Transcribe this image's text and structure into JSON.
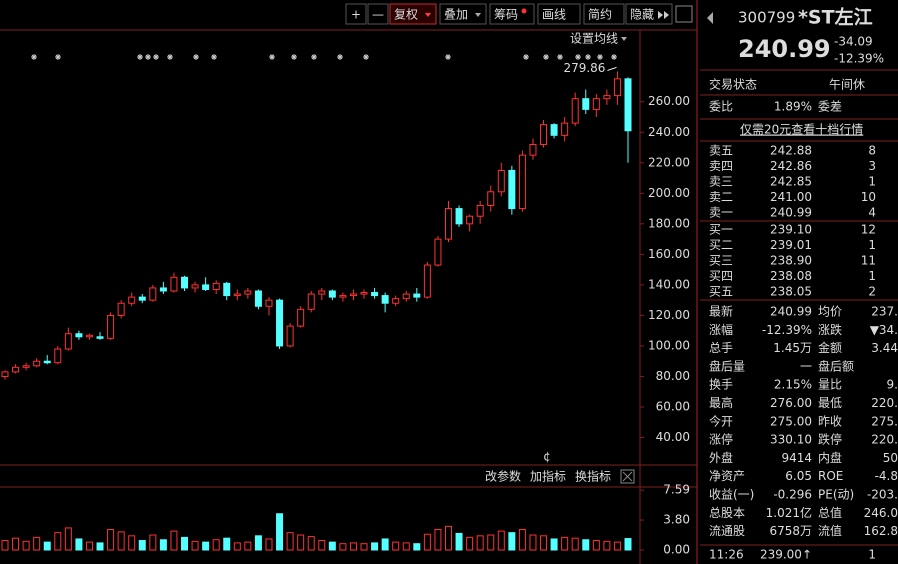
{
  "toolbar": {
    "buttons": [
      "+",
      "—",
      "复权",
      "叠加",
      "筹码",
      "画线",
      "简约",
      "隐藏"
    ]
  },
  "chart_data": {
    "type": "candlestick",
    "ma_setting": "设置均线",
    "high_label": "279.86",
    "signal": "¢",
    "ylim": [
      22,
      307
    ],
    "yticks": [
      {
        "value": 260,
        "label": "260.00"
      },
      {
        "value": 240,
        "label": "240.00"
      },
      {
        "value": 220,
        "label": "220.00"
      },
      {
        "value": 200,
        "label": "200.00"
      },
      {
        "value": 180,
        "label": "180.00"
      },
      {
        "value": 160,
        "label": "160.00"
      },
      {
        "value": 140,
        "label": "140.00"
      },
      {
        "value": 120,
        "label": "120.00"
      },
      {
        "value": 100,
        "label": "100.00"
      },
      {
        "value": 80,
        "label": "80.00"
      },
      {
        "value": 60,
        "label": "60.00"
      },
      {
        "value": 40,
        "label": "40.00"
      }
    ],
    "up_color": "#ff3232",
    "down_color": "#54ffff",
    "candles": [
      [
        80,
        84,
        78,
        83
      ],
      [
        83,
        88,
        82,
        86
      ],
      [
        86,
        89,
        84,
        87
      ],
      [
        87,
        92,
        86,
        90
      ],
      [
        90,
        94,
        88,
        89
      ],
      [
        89,
        100,
        88,
        98
      ],
      [
        98,
        112,
        97,
        108
      ],
      [
        108,
        110,
        104,
        106
      ],
      [
        106,
        108,
        104,
        107
      ],
      [
        106,
        109,
        104,
        105
      ],
      [
        105,
        122,
        104,
        120
      ],
      [
        120,
        130,
        118,
        128
      ],
      [
        128,
        135,
        126,
        132
      ],
      [
        132,
        134,
        128,
        130
      ],
      [
        130,
        140,
        129,
        138
      ],
      [
        138,
        142,
        134,
        136
      ],
      [
        136,
        148,
        135,
        145
      ],
      [
        145,
        146,
        136,
        138
      ],
      [
        138,
        142,
        135,
        140
      ],
      [
        140,
        145,
        136,
        137
      ],
      [
        137,
        143,
        134,
        141
      ],
      [
        141,
        142,
        130,
        133
      ],
      [
        133,
        137,
        130,
        134
      ],
      [
        134,
        138,
        131,
        136
      ],
      [
        136,
        137,
        124,
        126
      ],
      [
        126,
        132,
        120,
        130
      ],
      [
        130,
        131,
        98,
        100
      ],
      [
        100,
        115,
        99,
        113
      ],
      [
        113,
        126,
        112,
        124
      ],
      [
        124,
        136,
        122,
        134
      ],
      [
        134,
        138,
        130,
        136
      ],
      [
        136,
        137,
        130,
        132
      ],
      [
        132,
        135,
        129,
        133
      ],
      [
        133,
        137,
        130,
        134
      ],
      [
        134,
        137,
        131,
        135
      ],
      [
        135,
        138,
        131,
        133
      ],
      [
        133,
        135,
        122,
        128
      ],
      [
        128,
        133,
        126,
        131
      ],
      [
        131,
        136,
        129,
        134
      ],
      [
        134,
        138,
        129,
        132
      ],
      [
        132,
        155,
        131,
        153
      ],
      [
        153,
        172,
        152,
        170
      ],
      [
        170,
        195,
        168,
        190
      ],
      [
        190,
        192,
        178,
        180
      ],
      [
        180,
        186,
        175,
        185
      ],
      [
        185,
        195,
        180,
        192
      ],
      [
        192,
        205,
        188,
        201
      ],
      [
        201,
        220,
        198,
        215
      ],
      [
        215,
        218,
        186,
        190
      ],
      [
        190,
        228,
        188,
        225
      ],
      [
        225,
        236,
        222,
        232
      ],
      [
        232,
        248,
        230,
        245
      ],
      [
        245,
        246,
        236,
        238
      ],
      [
        238,
        250,
        234,
        246
      ],
      [
        246,
        266,
        244,
        262
      ],
      [
        262,
        268,
        252,
        255
      ],
      [
        255,
        265,
        250,
        262
      ],
      [
        262,
        268,
        258,
        264
      ],
      [
        264,
        279.86,
        258,
        275
      ],
      [
        275,
        276,
        220,
        240.99
      ]
    ],
    "vlim": [
      0,
      8.5
    ],
    "vticks": [
      7.59,
      {
        "value": 3.8,
        "label": "3.80"
      },
      {
        "value": 0,
        "label": "0.00"
      }
    ],
    "volumes": [
      1.2,
      1.5,
      1.1,
      1.6,
      1.0,
      2.2,
      2.8,
      1.4,
      1.0,
      0.9,
      2.6,
      2.3,
      1.8,
      1.2,
      1.9,
      1.3,
      2.4,
      1.6,
      1.1,
      1.0,
      1.3,
      1.5,
      0.9,
      1.0,
      1.8,
      1.4,
      4.6,
      2.2,
      1.9,
      1.7,
      1.2,
      1.0,
      0.8,
      0.9,
      0.8,
      0.9,
      1.4,
      1.0,
      0.9,
      0.8,
      2.0,
      2.6,
      3.0,
      2.1,
      1.6,
      1.8,
      1.9,
      2.4,
      2.2,
      2.6,
      1.9,
      1.8,
      1.4,
      1.6,
      1.5,
      1.3,
      1.2,
      1.1,
      1.0,
      1.45
    ],
    "indicator_buttons": [
      "改参数",
      "加指标",
      "换指标"
    ]
  },
  "quote": {
    "code": "300799",
    "name": "*ST左江",
    "price": "240.99",
    "change": "-34.09",
    "change_pct": "-12.39%",
    "status": [
      "交易状态",
      "午间休"
    ],
    "ratio": [
      "委比",
      "1.89%",
      "委差"
    ],
    "link": "仅需20元查看十档行情",
    "asks": [
      [
        "卖五",
        "242.88",
        "8"
      ],
      [
        "卖四",
        "242.86",
        "3"
      ],
      [
        "卖三",
        "242.85",
        "1"
      ],
      [
        "卖二",
        "241.00",
        "10"
      ],
      [
        "卖一",
        "240.99",
        "4"
      ]
    ],
    "bids": [
      [
        "买一",
        "239.10",
        "12"
      ],
      [
        "买二",
        "239.01",
        "1"
      ],
      [
        "买三",
        "238.90",
        "11"
      ],
      [
        "买四",
        "238.08",
        "1"
      ],
      [
        "买五",
        "238.05",
        "2"
      ]
    ],
    "stats": [
      [
        "最新",
        "240.99",
        "均价",
        "237."
      ],
      [
        "涨幅",
        "-12.39%",
        "涨跌",
        "▼34."
      ],
      [
        "总手",
        "1.45万",
        "金额",
        "3.44"
      ],
      [
        "盘后量",
        "一",
        "盘后额"
      ],
      [
        "换手",
        "2.15%",
        "量比",
        "9."
      ],
      [
        "最高",
        "276.00",
        "最低",
        "220."
      ],
      [
        "今开",
        "275.00",
        "昨收",
        "275."
      ],
      [
        "涨停",
        "330.10",
        "跌停",
        "220."
      ],
      [
        "外盘",
        "9414",
        "内盘",
        "50"
      ],
      [
        "净资产",
        "6.05",
        "ROE",
        "-4.8"
      ],
      [
        "收益(一)",
        "-0.296",
        "PE(动)",
        "-203."
      ],
      [
        "总股本",
        "1.021亿",
        "总值",
        "246.0"
      ],
      [
        "流通股",
        "6758万",
        "流值",
        "162.8"
      ]
    ],
    "last_trade": [
      "11:26",
      "239.00↑",
      "1"
    ]
  }
}
